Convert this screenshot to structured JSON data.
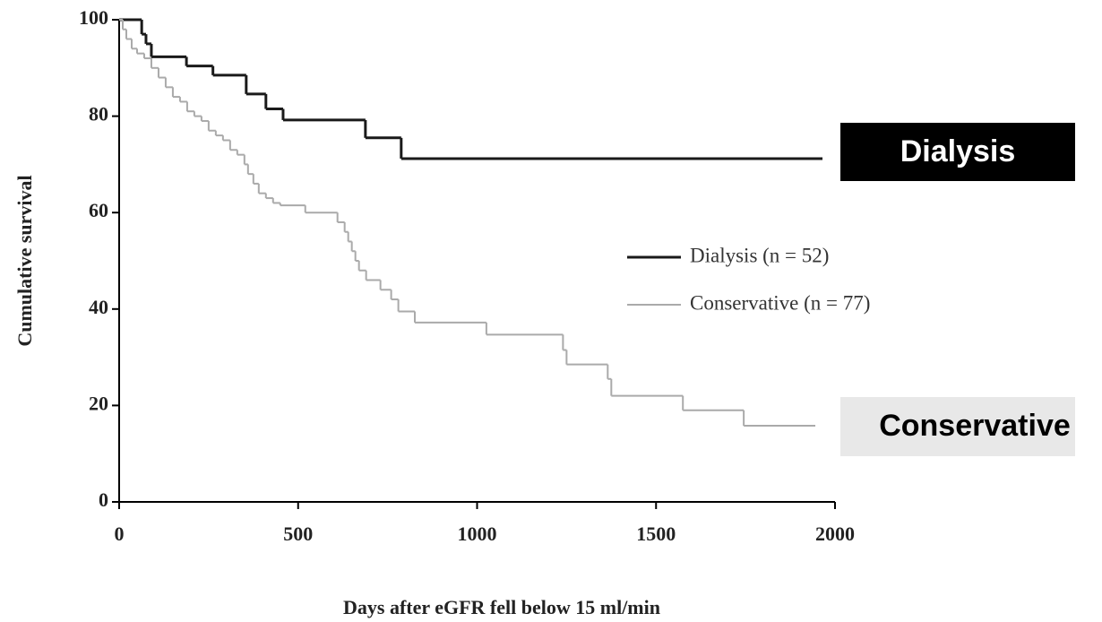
{
  "chart_data": {
    "type": "step",
    "x_label": "Days after eGFR fell below 15 ml/min",
    "y_label": "Cumulative survival",
    "xlim": [
      0,
      2000
    ],
    "xticks": [
      0,
      500,
      1000,
      1500,
      2000
    ],
    "ylim": [
      0,
      100
    ],
    "yticks": [
      0,
      20,
      40,
      60,
      80,
      100
    ],
    "legend": "right",
    "annotations": [
      "Dialysis",
      "Conservative"
    ],
    "series": [
      {
        "name": "Dialysis (n = 52)",
        "color": "#1a1a1a",
        "x": [
          0,
          63,
          75,
          90,
          188,
          262,
          355,
          410,
          458,
          688,
          788,
          1965
        ],
        "values": [
          100,
          97,
          95,
          92.3,
          90.4,
          88.5,
          84.6,
          81.5,
          79.2,
          75.5,
          71.2,
          71.2
        ]
      },
      {
        "name": "Conservative (n = 77)",
        "color": "#aaaaaa",
        "x": [
          0,
          10,
          20,
          35,
          50,
          70,
          90,
          110,
          130,
          150,
          170,
          190,
          210,
          230,
          250,
          270,
          290,
          310,
          330,
          350,
          360,
          375,
          390,
          410,
          430,
          450,
          520,
          610,
          630,
          640,
          650,
          660,
          670,
          690,
          730,
          760,
          780,
          826,
          1026,
          1240,
          1250,
          1365,
          1375,
          1575,
          1745,
          1945
        ],
        "values": [
          100,
          98,
          96,
          94,
          93,
          92,
          90,
          88,
          86,
          84,
          83,
          81,
          80,
          79,
          77,
          76,
          75,
          73,
          72,
          70,
          68,
          66,
          64,
          63,
          62,
          61.5,
          60,
          58,
          56,
          54,
          52,
          50,
          48,
          46,
          44,
          42,
          39.5,
          37.2,
          34.7,
          31.5,
          28.5,
          25.5,
          22,
          19,
          15.8,
          15.8
        ]
      }
    ]
  }
}
